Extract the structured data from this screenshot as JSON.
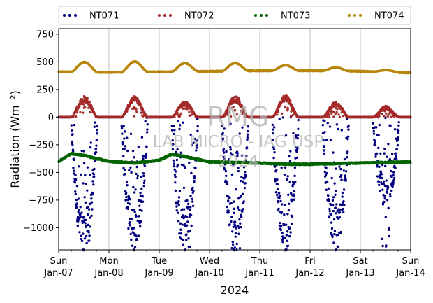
{
  "chart_data": {
    "type": "scatter",
    "title": "",
    "xlabel": "2024",
    "ylabel": "Radiation (Wm⁻²)",
    "ylim": [
      -1200,
      800
    ],
    "yticks": [
      -1000,
      -750,
      -500,
      -250,
      0,
      250,
      500,
      750
    ],
    "xlim": [
      "2024-01-07",
      "2024-01-14"
    ],
    "xticks": [
      {
        "day": "Sun",
        "date": "Jan-07"
      },
      {
        "day": "Mon",
        "date": "Jan-08"
      },
      {
        "day": "Tue",
        "date": "Jan-09"
      },
      {
        "day": "Wed",
        "date": "Jan-10"
      },
      {
        "day": "Thu",
        "date": "Jan-11"
      },
      {
        "day": "Fri",
        "date": "Jan-12"
      },
      {
        "day": "Sat",
        "date": "Jan-13"
      },
      {
        "day": "Sun",
        "date": "Jan-14"
      }
    ],
    "grid": "vertical",
    "legend_position": "top",
    "watermark": [
      "RMG",
      "LAB MICRO - IAG USP",
      "2024"
    ],
    "series": [
      {
        "name": "NT071",
        "color": "#000080",
        "night_value": 0,
        "daily_min": [
          -1200,
          -1200,
          -1200,
          -1200,
          -1200,
          -1200,
          -820
        ],
        "scatter_noise": 0.35
      },
      {
        "name": "NT072",
        "color": "#a52a2a",
        "night_value": 0,
        "daily_max": [
          195,
          190,
          145,
          195,
          200,
          140,
          100
        ],
        "scatter_noise": 0.3
      },
      {
        "name": "NT073",
        "color": "#006400",
        "x": [
          "2024-01-07 00:00",
          "2024-01-07 06:00",
          "2024-01-07 12:00",
          "2024-01-07 18:00",
          "2024-01-08 00:00",
          "2024-01-08 12:00",
          "2024-01-09 00:00",
          "2024-01-09 06:00",
          "2024-01-09 12:00",
          "2024-01-10 00:00",
          "2024-01-10 12:00",
          "2024-01-11 00:00",
          "2024-01-11 12:00",
          "2024-01-12 00:00",
          "2024-01-12 12:00",
          "2024-01-13 00:00",
          "2024-01-13 12:00",
          "2024-01-14 00:00"
        ],
        "y": [
          -400,
          -330,
          -345,
          -375,
          -400,
          -415,
          -390,
          -335,
          -355,
          -405,
          -410,
          -415,
          -425,
          -425,
          -420,
          -415,
          -410,
          -405
        ]
      },
      {
        "name": "NT074",
        "color": "#b8860b",
        "night_value": 410,
        "night_trend": [
          410,
          405,
          410,
          415,
          420,
          420,
          415,
          400
        ],
        "daily_max": [
          500,
          505,
          490,
          490,
          470,
          450,
          425
        ],
        "scatter_noise": 0.05
      }
    ]
  }
}
